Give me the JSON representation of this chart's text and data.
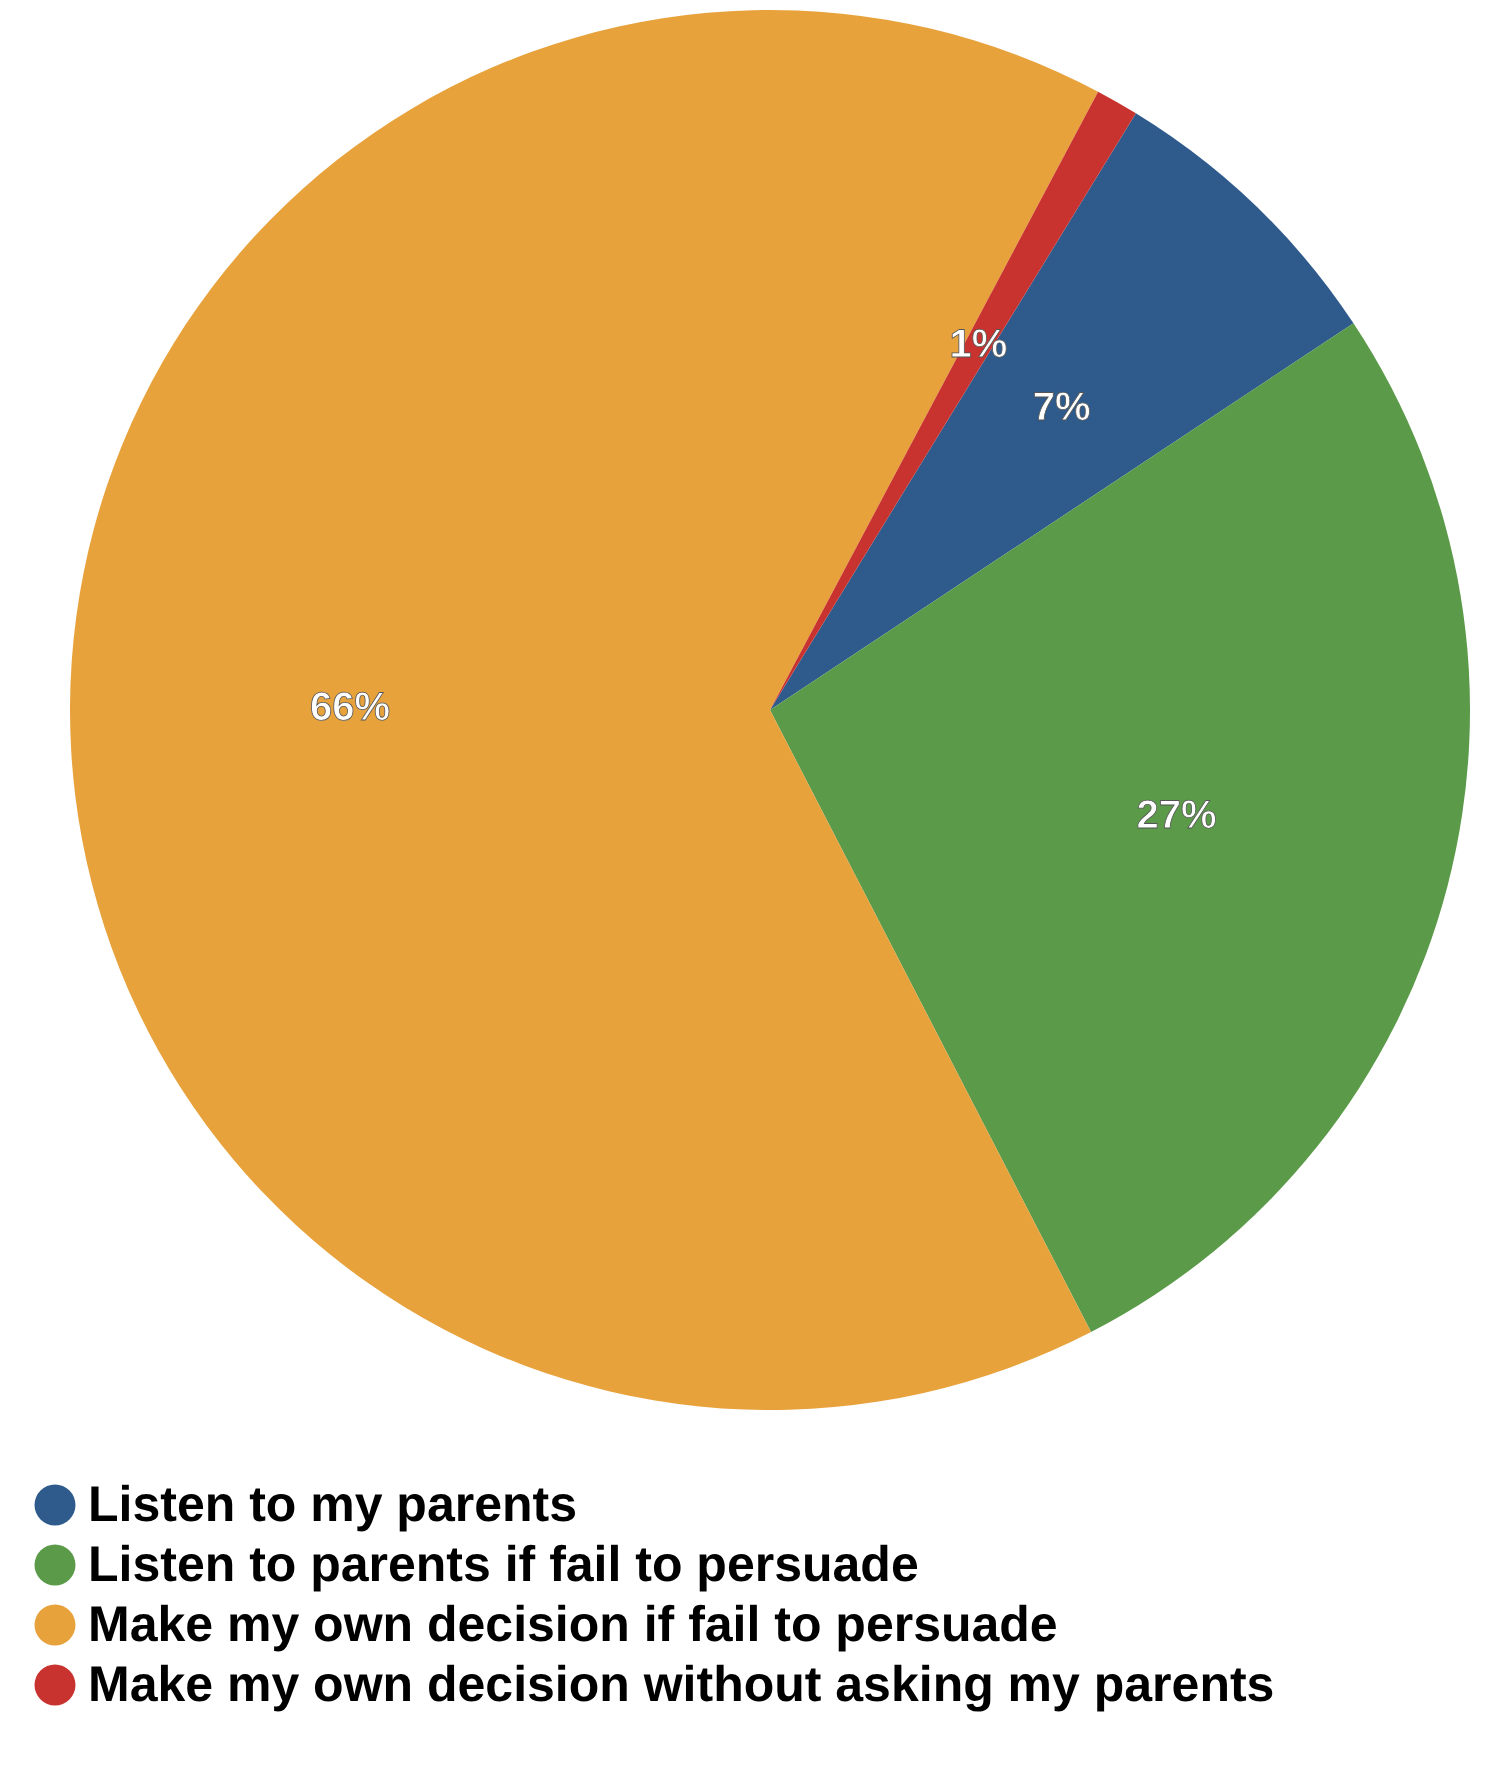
{
  "chart_data": {
    "type": "pie",
    "categories": [
      "Listen to my parents",
      "Listen to parents if fail to persuade",
      "Make my own decision if fail to persuade",
      "Make my own decision without asking my parents"
    ],
    "values": [
      7,
      27,
      66,
      1
    ],
    "colors": [
      "#2e5a8c",
      "#5a9a48",
      "#e8a23c",
      "#c8332f"
    ],
    "value_labels": [
      "7%",
      "27%",
      "66%",
      "1%"
    ],
    "legend": "bottom"
  }
}
